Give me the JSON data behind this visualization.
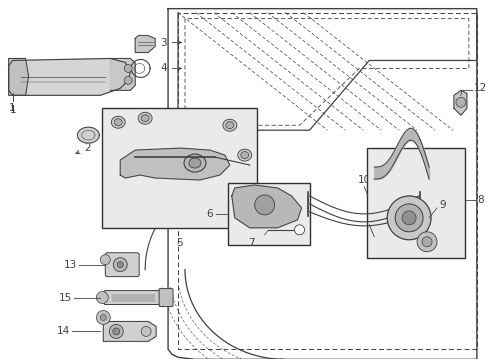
{
  "bg_color": "#ffffff",
  "line_color": "#404040",
  "label_color": "#000000",
  "label_fontsize": 7.5,
  "fig_w": 4.9,
  "fig_h": 3.6,
  "dpi": 100
}
